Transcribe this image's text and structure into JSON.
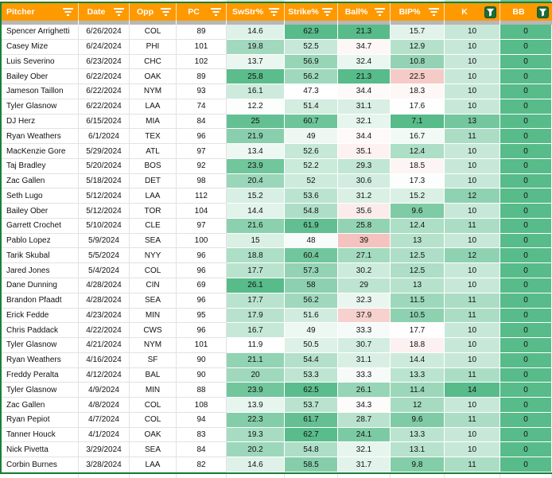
{
  "header": {
    "columns": [
      {
        "id": "pitcher",
        "label": "Pitcher",
        "filter": "inactive",
        "align": "left"
      },
      {
        "id": "date",
        "label": "Date",
        "filter": "inactive",
        "align": "center"
      },
      {
        "id": "opp",
        "label": "Opp",
        "filter": "inactive",
        "align": "center"
      },
      {
        "id": "pc",
        "label": "PC",
        "filter": "inactive",
        "align": "center"
      },
      {
        "id": "swstr",
        "label": "SwStr%",
        "filter": "inactive",
        "align": "center"
      },
      {
        "id": "strike",
        "label": "Strike%",
        "filter": "inactive",
        "align": "center"
      },
      {
        "id": "ball",
        "label": "Ball%",
        "filter": "inactive",
        "align": "center"
      },
      {
        "id": "bip",
        "label": "BIP%",
        "filter": "inactive",
        "align": "center"
      },
      {
        "id": "k",
        "label": "K",
        "filter": "active",
        "align": "center"
      },
      {
        "id": "bb",
        "label": "BB",
        "filter": "active",
        "align": "center"
      }
    ]
  },
  "colors": {
    "header_bg": "#ff9900",
    "header_text": "#ffffff",
    "range_border_green": "#188038",
    "filter_button_bg": "#1d6b3a",
    "divider_gray": "#b7b7b7",
    "gridline": "#e2e2e2",
    "scale_green": "#57bb8a",
    "scale_red": "#e67c73",
    "scale_white": "#ffffff"
  },
  "color_scales": {
    "swstr": {
      "type": "linear",
      "min": 11.9,
      "max": 26.1,
      "minColor": "#ffffff",
      "maxColor": "#57bb8a"
    },
    "strike": {
      "type": "linear",
      "min": 47.3,
      "max": 62.9,
      "minColor": "#ffffff",
      "maxColor": "#57bb8a"
    },
    "ball": {
      "type": "diverging",
      "min": 21.3,
      "mid": 34,
      "max": 45,
      "minColor": "#57bb8a",
      "midColor": "#ffffff",
      "maxColor": "#e67c73"
    },
    "bip": {
      "type": "diverging",
      "min": 7.1,
      "mid": 17.5,
      "max": 30,
      "minColor": "#57bb8a",
      "midColor": "#ffffff",
      "maxColor": "#e67c73"
    },
    "k": {
      "type": "linear",
      "min": 8,
      "max": 14,
      "minColor": "#ffffff",
      "maxColor": "#57bb8a"
    },
    "bb": {
      "type": "diverging",
      "min": 0,
      "mid": 3,
      "max": 6,
      "minColor": "#57bb8a",
      "midColor": "#ffffff",
      "maxColor": "#e67c73"
    }
  },
  "top_sliver_colors": [
    "#ffffff",
    "#ffffff",
    "#ffffff",
    "#ffffff",
    "#ffffff",
    "#cde9da",
    "#ffffff",
    "#ffffff",
    "#ffffff",
    "#c2e4d2",
    "#6fc49a"
  ],
  "rows": [
    {
      "pitcher": "Spencer Arrighetti",
      "date": "6/26/2024",
      "opp": "COL",
      "pc": 89,
      "swstr": 14.6,
      "strike": 62.9,
      "ball": 21.3,
      "bip": 15.7,
      "k": 10,
      "bb": 0
    },
    {
      "pitcher": "Casey Mize",
      "date": "6/24/2024",
      "opp": "PHI",
      "pc": 101,
      "swstr": 19.8,
      "strike": 52.5,
      "ball": 34.7,
      "bip": 12.9,
      "k": 10,
      "bb": 0
    },
    {
      "pitcher": "Luis Severino",
      "date": "6/23/2024",
      "opp": "CHC",
      "pc": 102,
      "swstr": 13.7,
      "strike": 56.9,
      "ball": 32.4,
      "bip": 10.8,
      "k": 10,
      "bb": 0
    },
    {
      "pitcher": "Bailey Ober",
      "date": "6/22/2024",
      "opp": "OAK",
      "pc": 89,
      "swstr": 25.8,
      "strike": 56.2,
      "ball": 21.3,
      "bip": 22.5,
      "k": 10,
      "bb": 0
    },
    {
      "pitcher": "Jameson Taillon",
      "date": "6/22/2024",
      "opp": "NYM",
      "pc": 93,
      "swstr": 16.1,
      "strike": 47.3,
      "ball": 34.4,
      "bip": 18.3,
      "k": 10,
      "bb": 0
    },
    {
      "pitcher": "Tyler Glasnow",
      "date": "6/22/2024",
      "opp": "LAA",
      "pc": 74,
      "swstr": 12.2,
      "strike": 51.4,
      "ball": 31.1,
      "bip": 17.6,
      "k": 10,
      "bb": 0
    },
    {
      "pitcher": "DJ Herz",
      "date": "6/15/2024",
      "opp": "MIA",
      "pc": 84,
      "swstr": 25,
      "strike": 60.7,
      "ball": 32.1,
      "bip": 7.1,
      "k": 13,
      "bb": 0
    },
    {
      "pitcher": "Ryan Weathers",
      "date": "6/1/2024",
      "opp": "TEX",
      "pc": 96,
      "swstr": 21.9,
      "strike": 49,
      "ball": 34.4,
      "bip": 16.7,
      "k": 11,
      "bb": 0
    },
    {
      "pitcher": "MacKenzie Gore",
      "date": "5/29/2024",
      "opp": "ATL",
      "pc": 97,
      "swstr": 13.4,
      "strike": 52.6,
      "ball": 35.1,
      "bip": 12.4,
      "k": 10,
      "bb": 0
    },
    {
      "pitcher": "Taj Bradley",
      "date": "5/20/2024",
      "opp": "BOS",
      "pc": 92,
      "swstr": 23.9,
      "strike": 52.2,
      "ball": 29.3,
      "bip": 18.5,
      "k": 10,
      "bb": 0
    },
    {
      "pitcher": "Zac Gallen",
      "date": "5/18/2024",
      "opp": "DET",
      "pc": 98,
      "swstr": 20.4,
      "strike": 52,
      "ball": 30.6,
      "bip": 17.3,
      "k": 10,
      "bb": 0
    },
    {
      "pitcher": "Seth Lugo",
      "date": "5/12/2024",
      "opp": "LAA",
      "pc": 112,
      "swstr": 15.2,
      "strike": 53.6,
      "ball": 31.2,
      "bip": 15.2,
      "k": 12,
      "bb": 0
    },
    {
      "pitcher": "Bailey Ober",
      "date": "5/12/2024",
      "opp": "TOR",
      "pc": 104,
      "swstr": 14.4,
      "strike": 54.8,
      "ball": 35.6,
      "bip": 9.6,
      "k": 10,
      "bb": 0
    },
    {
      "pitcher": "Garrett Crochet",
      "date": "5/10/2024",
      "opp": "CLE",
      "pc": 97,
      "swstr": 21.6,
      "strike": 61.9,
      "ball": 25.8,
      "bip": 12.4,
      "k": 11,
      "bb": 0
    },
    {
      "pitcher": "Pablo Lopez",
      "date": "5/9/2024",
      "opp": "SEA",
      "pc": 100,
      "swstr": 15,
      "strike": 48,
      "ball": 39,
      "bip": 13,
      "k": 10,
      "bb": 0
    },
    {
      "pitcher": "Tarik Skubal",
      "date": "5/5/2024",
      "opp": "NYY",
      "pc": 96,
      "swstr": 18.8,
      "strike": 60.4,
      "ball": 27.1,
      "bip": 12.5,
      "k": 12,
      "bb": 0
    },
    {
      "pitcher": "Jared Jones",
      "date": "5/4/2024",
      "opp": "COL",
      "pc": 96,
      "swstr": 17.7,
      "strike": 57.3,
      "ball": 30.2,
      "bip": 12.5,
      "k": 10,
      "bb": 0
    },
    {
      "pitcher": "Dane Dunning",
      "date": "4/28/2024",
      "opp": "CIN",
      "pc": 69,
      "swstr": 26.1,
      "strike": 58,
      "ball": 29,
      "bip": 13,
      "k": 10,
      "bb": 0
    },
    {
      "pitcher": "Brandon Pfaadt",
      "date": "4/28/2024",
      "opp": "SEA",
      "pc": 96,
      "swstr": 17.7,
      "strike": 56.2,
      "ball": 32.3,
      "bip": 11.5,
      "k": 11,
      "bb": 0
    },
    {
      "pitcher": "Erick Fedde",
      "date": "4/23/2024",
      "opp": "MIN",
      "pc": 95,
      "swstr": 17.9,
      "strike": 51.6,
      "ball": 37.9,
      "bip": 10.5,
      "k": 11,
      "bb": 0
    },
    {
      "pitcher": "Chris Paddack",
      "date": "4/22/2024",
      "opp": "CWS",
      "pc": 96,
      "swstr": 16.7,
      "strike": 49,
      "ball": 33.3,
      "bip": 17.7,
      "k": 10,
      "bb": 0
    },
    {
      "pitcher": "Tyler Glasnow",
      "date": "4/21/2024",
      "opp": "NYM",
      "pc": 101,
      "swstr": 11.9,
      "strike": 50.5,
      "ball": 30.7,
      "bip": 18.8,
      "k": 10,
      "bb": 0
    },
    {
      "pitcher": "Ryan Weathers",
      "date": "4/16/2024",
      "opp": "SF",
      "pc": 90,
      "swstr": 21.1,
      "strike": 54.4,
      "ball": 31.1,
      "bip": 14.4,
      "k": 10,
      "bb": 0
    },
    {
      "pitcher": "Freddy Peralta",
      "date": "4/12/2024",
      "opp": "BAL",
      "pc": 90,
      "swstr": 20,
      "strike": 53.3,
      "ball": 33.3,
      "bip": 13.3,
      "k": 11,
      "bb": 0
    },
    {
      "pitcher": "Tyler Glasnow",
      "date": "4/9/2024",
      "opp": "MIN",
      "pc": 88,
      "swstr": 23.9,
      "strike": 62.5,
      "ball": 26.1,
      "bip": 11.4,
      "k": 14,
      "bb": 0
    },
    {
      "pitcher": "Zac Gallen",
      "date": "4/8/2024",
      "opp": "COL",
      "pc": 108,
      "swstr": 13.9,
      "strike": 53.7,
      "ball": 34.3,
      "bip": 12,
      "k": 10,
      "bb": 0
    },
    {
      "pitcher": "Ryan Pepiot",
      "date": "4/7/2024",
      "opp": "COL",
      "pc": 94,
      "swstr": 22.3,
      "strike": 61.7,
      "ball": 28.7,
      "bip": 9.6,
      "k": 11,
      "bb": 0
    },
    {
      "pitcher": "Tanner Houck",
      "date": "4/1/2024",
      "opp": "OAK",
      "pc": 83,
      "swstr": 19.3,
      "strike": 62.7,
      "ball": 24.1,
      "bip": 13.3,
      "k": 10,
      "bb": 0
    },
    {
      "pitcher": "Nick Pivetta",
      "date": "3/29/2024",
      "opp": "SEA",
      "pc": 84,
      "swstr": 20.2,
      "strike": 54.8,
      "ball": 32.1,
      "bip": 13.1,
      "k": 10,
      "bb": 0
    },
    {
      "pitcher": "Corbin Burnes",
      "date": "3/28/2024",
      "opp": "LAA",
      "pc": 82,
      "swstr": 14.6,
      "strike": 58.5,
      "ball": 31.7,
      "bip": 9.8,
      "k": 11,
      "bb": 0
    }
  ]
}
